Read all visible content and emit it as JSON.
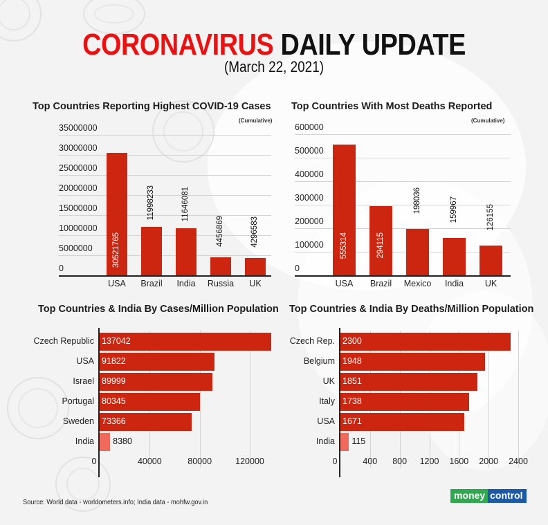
{
  "header": {
    "title_red": "CORONAVIRUS",
    "title_black": "DAILY UPDATE",
    "date": "(March 22, 2021)"
  },
  "footer": {
    "source": "Source: World data - worldometers.info; India data - mohfw.gov.in",
    "logo_money": "money",
    "logo_control": "control"
  },
  "colors": {
    "bar": "#cc2510",
    "india_bar": "#ef6a5a",
    "title_red": "#ee1010",
    "logo_green": "#2fa84f",
    "logo_blue": "#1a5aa6"
  },
  "chart_data": [
    {
      "type": "bar",
      "title": "Top Countries Reporting Highest COVID-19 Cases",
      "subtitle": "(Cumulative)",
      "categories": [
        "USA",
        "Brazil",
        "India",
        "Russia",
        "UK"
      ],
      "values": [
        30521765,
        11998233,
        11646081,
        4456869,
        4296583
      ],
      "value_labels": [
        "30521765",
        "11998233",
        "11646081",
        "4456869",
        "4296583"
      ],
      "yticks": [
        "35000000",
        "30000000",
        "25000000",
        "20000000",
        "15000000",
        "10000000",
        "5000000",
        "0"
      ],
      "ylim": [
        0,
        35000000
      ],
      "xlabel": "",
      "ylabel": "",
      "grid": true
    },
    {
      "type": "bar",
      "title": "Top Countries With Most Deaths Reported",
      "subtitle": "(Cumulative)",
      "categories": [
        "USA",
        "Brazil",
        "Mexico",
        "India",
        "UK"
      ],
      "values": [
        555314,
        294115,
        198036,
        159967,
        126155
      ],
      "value_labels": [
        "555314",
        "294115",
        "198036",
        "159967",
        "126155"
      ],
      "yticks": [
        "600000",
        "500000",
        "400000",
        "300000",
        "200000",
        "100000",
        "0"
      ],
      "ylim": [
        0,
        600000
      ],
      "xlabel": "",
      "ylabel": "",
      "grid": true
    },
    {
      "type": "bar",
      "orientation": "horizontal",
      "title": "Top Countries & India By Cases/Million Population",
      "categories": [
        "Czech Republic",
        "USA",
        "Israel",
        "Portugal",
        "Sweden",
        "India"
      ],
      "values": [
        137042,
        91822,
        89999,
        80345,
        73366,
        8380
      ],
      "value_labels": [
        "137042",
        "91822",
        "89999",
        "80345",
        "73366",
        "8380"
      ],
      "xticks": [
        "0",
        "40000",
        "80000",
        "120000"
      ],
      "xlim": [
        0,
        140000
      ],
      "highlight": "India",
      "grid": true
    },
    {
      "type": "bar",
      "orientation": "horizontal",
      "title": "Top Countries & India By Deaths/Million Population",
      "categories": [
        "Czech Rep.",
        "Belgium",
        "UK",
        "Italy",
        "USA",
        "India"
      ],
      "values": [
        2300,
        1948,
        1851,
        1738,
        1671,
        115
      ],
      "value_labels": [
        "2300",
        "1948",
        "1851",
        "1738",
        "1671",
        "115"
      ],
      "xticks": [
        "0",
        "400",
        "800",
        "1200",
        "1600",
        "2000",
        "2400"
      ],
      "xlim": [
        0,
        2500
      ],
      "highlight": "India",
      "grid": true
    }
  ]
}
